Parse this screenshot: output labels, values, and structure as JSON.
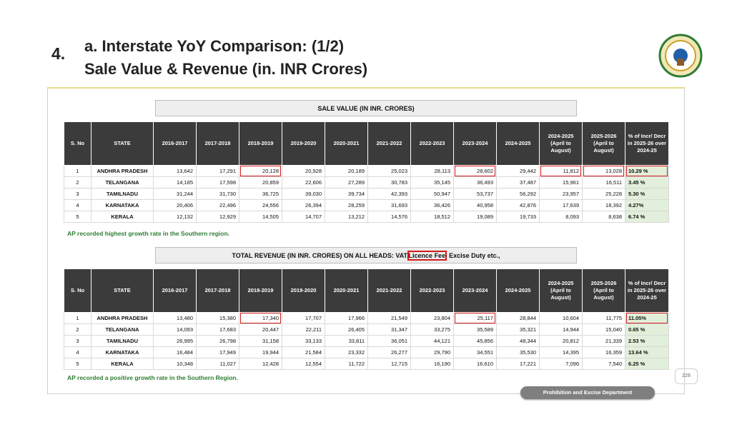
{
  "header": {
    "number": "4.",
    "title_line1": "a. Interstate YoY Comparison: (1/2)",
    "title_line2": "Sale Value & Revenue (in. INR Crores)"
  },
  "sale_table": {
    "title": "SALE VALUE (IN INR. CRORES)",
    "columns": [
      "S. No",
      "STATE",
      "2016-2017",
      "2017-2018",
      "2018-2019",
      "2019-2020",
      "2020-2021",
      "2021-2022",
      "2022-2023",
      "2023-2024",
      "2024-2025",
      "2024-2025 (April to August)",
      "2025-2026 (April to August)",
      "% of Incr/ Decr in 2025-26 over 2024-25"
    ],
    "rows": [
      [
        "1",
        "ANDHRA PRADESH",
        "13,642",
        "17,291",
        "20,128",
        "20,928",
        "20,189",
        "25,023",
        "28,113",
        "28,602",
        "29,442",
        "11,812",
        "13,028",
        "10.29 %"
      ],
      [
        "2",
        "TELANGANA",
        "14,185",
        "17,598",
        "20,859",
        "22,606",
        "27,289",
        "30,783",
        "35,145",
        "36,493",
        "37,487",
        "15,961",
        "16,511",
        "3.45 %"
      ],
      [
        "3",
        "TAMILNADU",
        "31,244",
        "31,730",
        "36,725",
        "39,030",
        "39,734",
        "42,393",
        "50,947",
        "53,737",
        "56,292",
        "23,957",
        "25,228",
        "5.30 %"
      ],
      [
        "4",
        "KARNATAKA",
        "20,406",
        "22,496",
        "24,556",
        "26,394",
        "28,259",
        "31,693",
        "36,426",
        "40,958",
        "42,876",
        "17,639",
        "18,392",
        "4.27%"
      ],
      [
        "5",
        "KERALA",
        "12,132",
        "12,929",
        "14,505",
        "14,707",
        "13,212",
        "14,576",
        "18,512",
        "19,089",
        "19,733",
        "8,093",
        "8,638",
        "6.74 %"
      ]
    ],
    "note": "AP recorded highest growth rate in the Southern region."
  },
  "revenue_table": {
    "title": [
      "TOTAL REVENUE (IN INR. CRORES) ON ALL HEADS: VAT,",
      "Licence Fee",
      ", Excise Duty etc.,"
    ],
    "columns": [
      "S. No",
      "STATE",
      "2016-2017",
      "2017-2018",
      "2018-2019",
      "2019-2020",
      "2020-2021",
      "2021-2022",
      "2022-2023",
      "2023-2024",
      "2024-2025",
      "2024-2025 (April to August)",
      "2025-2026 (April to August)",
      "% of Incr/ Decr in 2025-26 over 2024-25"
    ],
    "rows": [
      [
        "1",
        "ANDHRA PRADESH",
        "13,480",
        "15,380",
        "17,340",
        "17,707",
        "17,966",
        "21,549",
        "23,804",
        "25,117",
        "28,844",
        "10,604",
        "11,775",
        "11.05%"
      ],
      [
        "2",
        "TELANGANA",
        "14,093",
        "17,683",
        "20,447",
        "22,211",
        "26,405",
        "31,347",
        "33,275",
        "35,589",
        "35,321",
        "14,944",
        "15,040",
        "0.65 %"
      ],
      [
        "3",
        "TAMILNADU",
        "26,995",
        "26,798",
        "31,158",
        "33,133",
        "33,811",
        "36,051",
        "44,121",
        "45,856",
        "48,344",
        "20,812",
        "21,339",
        "2.53 %"
      ],
      [
        "4",
        "KARNATAKA",
        "16,484",
        "17,949",
        "19,944",
        "21,584",
        "23,332",
        "26,277",
        "29,790",
        "34,551",
        "35,530",
        "14,395",
        "16,359",
        "13.64 %"
      ],
      [
        "5",
        "KERALA",
        "10,348",
        "11,027",
        "12,428",
        "12,554",
        "11,722",
        "12,715",
        "16,190",
        "16,610",
        "17,221",
        "7,096",
        "7,540",
        "6.25 %"
      ]
    ],
    "note": "AP recorded a positive growth rate in the Southern Region."
  },
  "footer": {
    "page": "228",
    "department": "Prohibition and Excise Department"
  }
}
